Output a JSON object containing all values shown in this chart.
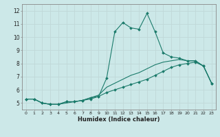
{
  "xlabel": "Humidex (Indice chaleur)",
  "background_color": "#cce8e8",
  "grid_color": "#c0d8d8",
  "line_color": "#1a7a6a",
  "xlim": [
    -0.5,
    23.5
  ],
  "ylim": [
    4.5,
    12.5
  ],
  "xticks": [
    0,
    1,
    2,
    3,
    4,
    5,
    6,
    7,
    8,
    9,
    10,
    11,
    12,
    13,
    14,
    15,
    16,
    17,
    18,
    19,
    20,
    21,
    22,
    23
  ],
  "yticks": [
    5,
    6,
    7,
    8,
    9,
    10,
    11,
    12
  ],
  "series": [
    {
      "x": [
        0,
        1,
        2,
        3,
        4,
        5,
        6,
        7,
        8,
        9,
        10,
        11,
        12,
        13,
        14,
        15,
        16,
        17,
        18,
        19,
        20,
        21,
        22,
        23
      ],
      "y": [
        5.3,
        5.3,
        5.0,
        4.9,
        4.9,
        5.1,
        5.1,
        5.2,
        5.3,
        5.5,
        5.8,
        6.0,
        6.2,
        6.4,
        6.6,
        6.8,
        7.1,
        7.4,
        7.7,
        7.9,
        8.0,
        8.1,
        7.8,
        6.5
      ],
      "marker": true
    },
    {
      "x": [
        0,
        1,
        2,
        3,
        4,
        5,
        6,
        7,
        8,
        9,
        10,
        11,
        12,
        13,
        14,
        15,
        16,
        17,
        18,
        19,
        20,
        21,
        22,
        23
      ],
      "y": [
        5.3,
        5.3,
        5.0,
        4.9,
        4.9,
        5.0,
        5.1,
        5.2,
        5.4,
        5.6,
        6.2,
        6.5,
        6.8,
        7.1,
        7.3,
        7.6,
        7.9,
        8.1,
        8.2,
        8.3,
        8.2,
        8.2,
        7.8,
        6.5
      ],
      "marker": false
    },
    {
      "x": [
        0,
        1,
        2,
        3,
        4,
        5,
        6,
        7,
        8,
        9,
        10,
        11,
        12,
        13,
        14,
        15,
        16,
        17,
        18,
        19,
        20,
        21,
        22,
        23
      ],
      "y": [
        5.3,
        5.3,
        5.0,
        4.9,
        4.9,
        5.1,
        5.1,
        5.2,
        5.4,
        5.5,
        6.9,
        10.4,
        11.1,
        10.7,
        10.6,
        11.8,
        10.4,
        8.8,
        8.5,
        8.4,
        8.2,
        8.2,
        7.8,
        6.5
      ],
      "marker": true
    }
  ]
}
